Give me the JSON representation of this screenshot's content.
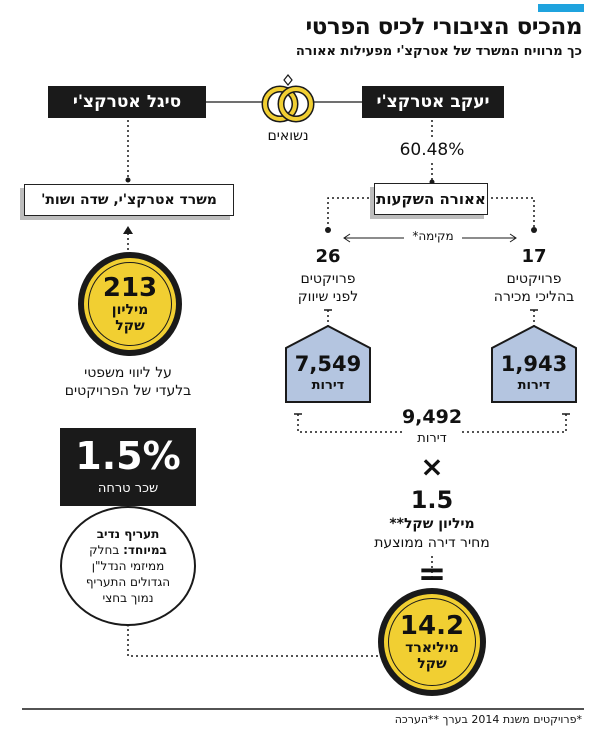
{
  "header": {
    "title": "מהכיס הציבורי לכיס הפרטי",
    "subtitle": "כך מרוויח המשרד של אטרקצ'י מפעילות אאורה"
  },
  "people": {
    "right": "יעקב אטרקצ'י",
    "left": "סיגל אטרקצ'י",
    "relation": "נשואים"
  },
  "ownership": "60.48%",
  "company": "אאורה השקעות",
  "founded": "מקימה*",
  "projects": {
    "right": {
      "count": "17",
      "line1": "פרויקטים",
      "line2": "בהליכי מכירה",
      "units": "1,943",
      "units_label": "דירות"
    },
    "left": {
      "count": "26",
      "line1": "פרויקטים",
      "line2": "לפני שיווק",
      "units": "7,549",
      "units_label": "דירות"
    }
  },
  "total_units": {
    "value": "9,492",
    "label": "דירות"
  },
  "times": "×",
  "price": {
    "value": "1.5",
    "unit": "מיליון שקל**",
    "label": "מחיר דירה ממוצעת"
  },
  "equals": "=",
  "result": {
    "value": "14.2",
    "line1": "מיליארד",
    "line2": "שקל"
  },
  "law_office": "משרד אטרקצ'י, שדה ושות'",
  "fees": {
    "value": "213",
    "line1": "מיליון",
    "line2": "שקל"
  },
  "fees_desc": {
    "line1": "על ליווי משפטי",
    "line2": "בלעדי של הפרויקטים"
  },
  "fee_pct": {
    "value": "1.5%",
    "label": "שכר טרחה"
  },
  "fee_note": {
    "bold1": "תעריף נדיב",
    "bold2": "במיוחד:",
    "rest1": "בחלק",
    "line3": "ממיזמי הנדל\"ן",
    "line4": "הגדולים התעריף",
    "line5": "נמוך בחצי"
  },
  "footnote": "*פרויקטים משנת 2014 בערך **הערכה"
}
